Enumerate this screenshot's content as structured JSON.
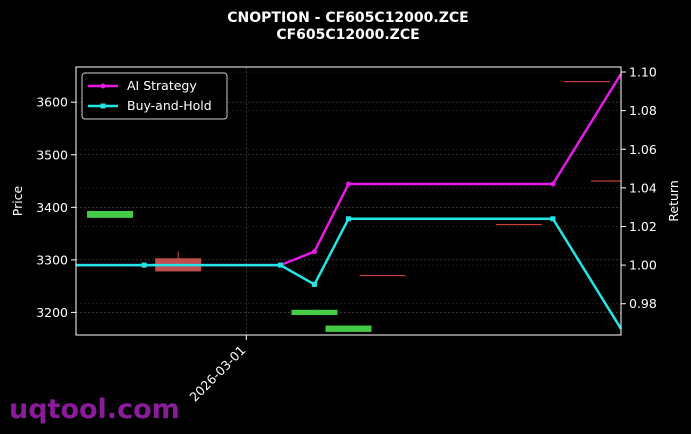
{
  "chart_data": {
    "type": "line",
    "title": "CNOPTION - CF605C12000.ZCE",
    "subtitle": "CF605C12000.ZCE",
    "ylabel_left": "Price",
    "ylabel_right": "Return",
    "x_tick_labels": [
      "2026-03-01"
    ],
    "y_left_ticks": [
      3200,
      3300,
      3400,
      3500,
      3600
    ],
    "y_right_ticks": [
      0.98,
      1.0,
      1.02,
      1.04,
      1.06,
      1.08,
      1.1
    ],
    "y_right_tick_labels": [
      "0.98",
      "1.00",
      "1.02",
      "1.04",
      "1.06",
      "1.08",
      "1.10"
    ],
    "ylim_left": [
      3157,
      3667
    ],
    "ylim_right": [
      0.9638,
      1.1026
    ],
    "xlim": [
      -0.5,
      7.5
    ],
    "grid": true,
    "legend_position": "top-left",
    "candles": [
      {
        "x": 0,
        "open": 3393,
        "close": 3380,
        "high": 3393,
        "low": 3380,
        "color": "#2ecc40"
      },
      {
        "x": 1,
        "open": 3303,
        "close": 3278,
        "high": 3316,
        "low": 3278,
        "color": "#e74c3c"
      },
      {
        "x": 2,
        "open": 3290,
        "close": 3290,
        "high": 3290,
        "low": 3290,
        "color": "#e74c3c"
      },
      {
        "x": 3,
        "open": 3195,
        "close": 3205,
        "high": 3205,
        "low": 3195,
        "color": "#2ecc40"
      },
      {
        "x": 3.5,
        "open": 3163,
        "close": 3175,
        "high": 3175,
        "low": 3163,
        "color": "#2ecc40"
      },
      {
        "x": 4,
        "open": 3271,
        "close": 3271,
        "high": 3271,
        "low": 3271,
        "color": "#e74c3c"
      },
      {
        "x": 6,
        "open": 3368,
        "close": 3368,
        "high": 3368,
        "low": 3368,
        "color": "#e74c3c"
      },
      {
        "x": 7,
        "open": 3640,
        "close": 3640,
        "high": 3640,
        "low": 3640,
        "color": "#e74c3c"
      },
      {
        "x": 7.4,
        "open": 3451,
        "close": 3451,
        "high": 3451,
        "low": 3451,
        "color": "#e74c3c"
      }
    ],
    "x_tick_position": 2,
    "series": [
      {
        "name": "AI Strategy",
        "color": "#e619e6",
        "marker": "circle",
        "x": [
          -0.5,
          0.5,
          2.5,
          3.0,
          3.5,
          6.5,
          7.5
        ],
        "y": [
          1.0,
          1.0,
          1.0,
          1.007,
          1.042,
          1.042,
          1.099
        ]
      },
      {
        "name": "Buy-and-Hold",
        "color": "#22e5e5",
        "marker": "square",
        "x": [
          -0.5,
          0.5,
          2.5,
          3.0,
          3.5,
          6.5,
          7.5
        ],
        "y": [
          1.0,
          1.0,
          1.0,
          0.99,
          1.024,
          1.024,
          0.967
        ]
      }
    ],
    "watermark": "uqtool.com",
    "colors": {
      "background": "#000000",
      "axis": "#ffffff",
      "grid": "#555555"
    }
  }
}
